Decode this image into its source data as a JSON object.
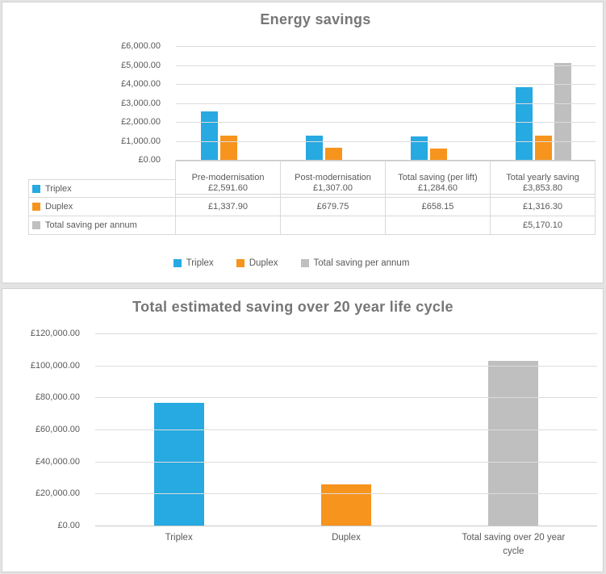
{
  "colors": {
    "triplex": "#27A9E1",
    "duplex": "#F7941D",
    "total": "#BFBFBF",
    "text": "#595959",
    "title": "#767676",
    "gridline": "#DCDCDC"
  },
  "chart_data": [
    {
      "type": "bar",
      "title": "Energy savings",
      "categories": [
        "Pre-modernisation",
        "Post-modernisation",
        "Total saving (per lift)",
        "Total yearly saving"
      ],
      "series": [
        {
          "name": "Triplex",
          "color_key": "triplex",
          "values": [
            2591.6,
            1307.0,
            1284.6,
            3853.8
          ],
          "labels": [
            "£2,591.60",
            "£1,307.00",
            "£1,284.60",
            "£3,853.80"
          ]
        },
        {
          "name": "Duplex",
          "color_key": "duplex",
          "values": [
            1337.9,
            679.75,
            658.15,
            1316.3
          ],
          "labels": [
            "£1,337.90",
            "£679.75",
            "£658.15",
            "£1,316.30"
          ]
        },
        {
          "name": "Total saving per annum",
          "color_key": "total",
          "values": [
            null,
            null,
            null,
            5170.1
          ],
          "labels": [
            "",
            "",
            "",
            "£5,170.10"
          ]
        }
      ],
      "ylim": [
        0,
        6000
      ],
      "ytick_step": 1000,
      "ytick_labels": [
        "£6,000.00",
        "£5,000.00",
        "£4,000.00",
        "£3,000.00",
        "£2,000.00",
        "£1,000.00",
        "£0.00"
      ],
      "grid": true,
      "data_table_shown": true,
      "legend_position": "bottom",
      "legend": [
        "Triplex",
        "Duplex",
        "Total saving per annum"
      ]
    },
    {
      "type": "bar",
      "title": "Total estimated saving over 20 year life cycle",
      "categories": [
        "Triplex",
        "Duplex",
        "Total saving over 20 year cycle"
      ],
      "values": [
        77076.0,
        26326.0,
        103402.0
      ],
      "bar_color_keys": [
        "triplex",
        "duplex",
        "total"
      ],
      "ylim": [
        0,
        120000
      ],
      "ytick_step": 20000,
      "ytick_labels": [
        "£120,000.00",
        "£100,000.00",
        "£80,000.00",
        "£60,000.00",
        "£40,000.00",
        "£20,000.00",
        "£0.00"
      ],
      "grid": true,
      "legend_position": "none",
      "legend": []
    }
  ]
}
